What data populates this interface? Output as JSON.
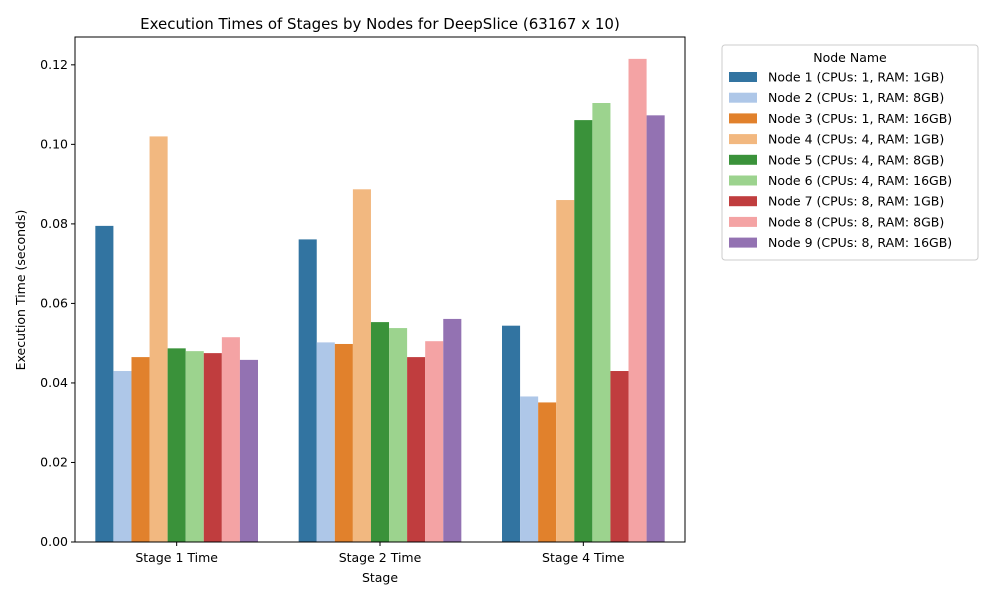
{
  "chart_data": {
    "type": "bar",
    "title": "Execution Times of Stages by Nodes for DeepSlice (63167 x 10)",
    "xlabel": "Stage",
    "ylabel": "Execution Time (seconds)",
    "categories": [
      "Stage 1 Time",
      "Stage 2 Time",
      "Stage 4 Time"
    ],
    "ylim": [
      0,
      0.127
    ],
    "yticks": [
      0.0,
      0.02,
      0.04,
      0.06,
      0.08,
      0.1,
      0.12
    ],
    "ytick_labels": [
      "0.00",
      "0.02",
      "0.04",
      "0.06",
      "0.08",
      "0.10",
      "0.12"
    ],
    "grid": false,
    "legend": {
      "title": "Node Name",
      "placement": "outside-top-right"
    },
    "series": [
      {
        "name": "Node 1 (CPUs: 1, RAM: 1GB)",
        "color": "#3274a1",
        "values": [
          0.0795,
          0.0761,
          0.0544
        ]
      },
      {
        "name": "Node 2 (CPUs: 1, RAM: 8GB)",
        "color": "#aec7e8",
        "values": [
          0.043,
          0.0502,
          0.0366
        ]
      },
      {
        "name": "Node 3 (CPUs: 1, RAM: 16GB)",
        "color": "#e1812c",
        "values": [
          0.0465,
          0.0498,
          0.0351
        ]
      },
      {
        "name": "Node 4 (CPUs: 4, RAM: 1GB)",
        "color": "#f2b880",
        "values": [
          0.102,
          0.0887,
          0.086
        ]
      },
      {
        "name": "Node 5 (CPUs: 4, RAM: 8GB)",
        "color": "#3a923a",
        "values": [
          0.0487,
          0.0553,
          0.1061
        ]
      },
      {
        "name": "Node 6 (CPUs: 4, RAM: 16GB)",
        "color": "#9cd38e",
        "values": [
          0.048,
          0.0538,
          0.1104
        ]
      },
      {
        "name": "Node 7 (CPUs: 8, RAM: 1GB)",
        "color": "#c03d3e",
        "values": [
          0.0475,
          0.0465,
          0.043
        ]
      },
      {
        "name": "Node 8 (CPUs: 8, RAM: 8GB)",
        "color": "#f4a3a4",
        "values": [
          0.0515,
          0.0505,
          0.1215
        ]
      },
      {
        "name": "Node 9 (CPUs: 8, RAM: 16GB)",
        "color": "#9372b2",
        "values": [
          0.0458,
          0.0561,
          0.1073
        ]
      }
    ]
  }
}
